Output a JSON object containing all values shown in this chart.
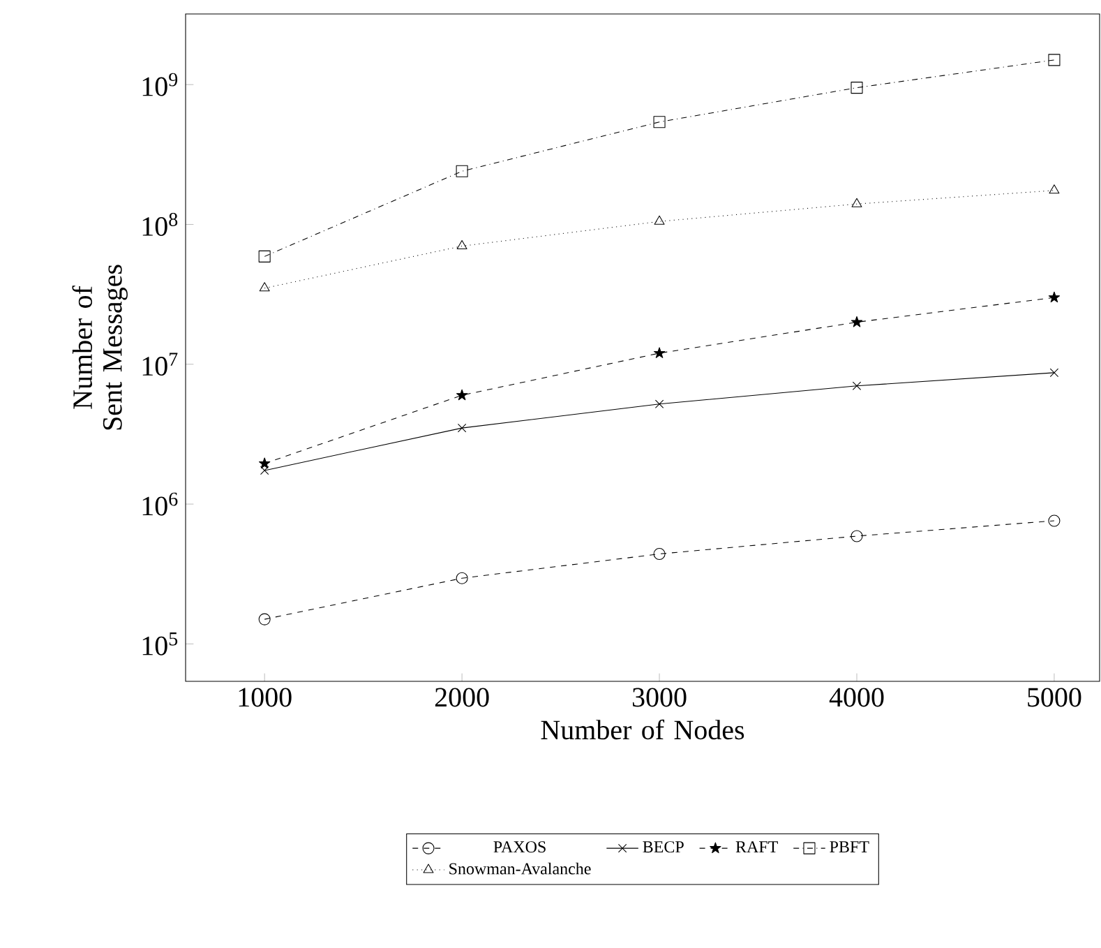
{
  "chart_data": {
    "type": "line",
    "xlabel": "Number of Nodes",
    "ylabel": "Number of Sent Messages",
    "x": [
      1000,
      2000,
      3000,
      4000,
      5000
    ],
    "series": [
      {
        "name": "PAXOS",
        "color": "#000000",
        "marker": "circle",
        "line_style": "dashed",
        "values": [
          150000,
          295000,
          440000,
          590000,
          760000
        ]
      },
      {
        "name": "BECP",
        "color": "#000000",
        "marker": "cross",
        "line_style": "solid",
        "values": [
          1740000,
          3500000,
          5200000,
          7000000,
          8700000
        ]
      },
      {
        "name": "RAFT",
        "color": "#000000",
        "marker": "star",
        "line_style": "dashed",
        "values": [
          1950000,
          6000000,
          12000000,
          20000000,
          30000000
        ]
      },
      {
        "name": "PBFT",
        "color": "#000000",
        "marker": "square",
        "line_style": "dashdot",
        "values": [
          59000000,
          240000000,
          540000000,
          950000000,
          1500000000
        ]
      },
      {
        "name": "Snowman-Avalanche",
        "color": "#000000",
        "marker": "triangle",
        "line_style": "dotted",
        "values": [
          35000000,
          70000000,
          105000000,
          140000000,
          175000000
        ]
      }
    ],
    "log": "y",
    "xlim": [
      600,
      5230
    ],
    "ylim": [
      54000,
      3200000000
    ],
    "xticks": [
      1000,
      2000,
      3000,
      4000,
      5000
    ],
    "yticks": [
      {
        "value": 100000,
        "label": "10$^{5}$"
      },
      {
        "value": 1000000,
        "label": "10$^{6}$"
      },
      {
        "value": 10000000,
        "label": "10$^{7}$"
      },
      {
        "value": 100000000,
        "label": "10$^{8}$"
      },
      {
        "value": 1000000000,
        "label": "10$^{9}$"
      }
    ],
    "grid": false,
    "legend": "bottom"
  }
}
